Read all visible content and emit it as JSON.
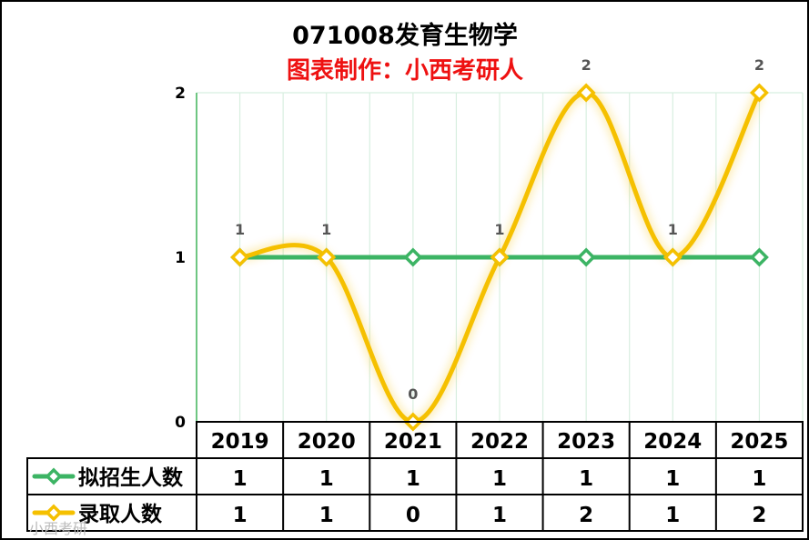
{
  "title": "071008发育生物学",
  "subtitle": "图表制作：小西考研人",
  "colors": {
    "series_recruit": "#3cb464",
    "series_admit": "#f5c000",
    "grid": "#d8efe0",
    "axis": "#41b45a",
    "subtitle": "#ee1111"
  },
  "chart_data": {
    "type": "line",
    "categories": [
      "2019",
      "2020",
      "2021",
      "2022",
      "2023",
      "2024",
      "2025"
    ],
    "ylim": [
      0,
      2
    ],
    "yticks": [
      "0",
      "1",
      "2"
    ],
    "grid": true,
    "legend": "table-bottom",
    "series": [
      {
        "name": "拟招生人数",
        "values": [
          1,
          1,
          1,
          1,
          1,
          1,
          1
        ],
        "color": "#3cb464"
      },
      {
        "name": "录取人数",
        "values": [
          1,
          1,
          0,
          1,
          2,
          1,
          2
        ],
        "color": "#f5c000"
      }
    ]
  },
  "watermark": "小西考研"
}
